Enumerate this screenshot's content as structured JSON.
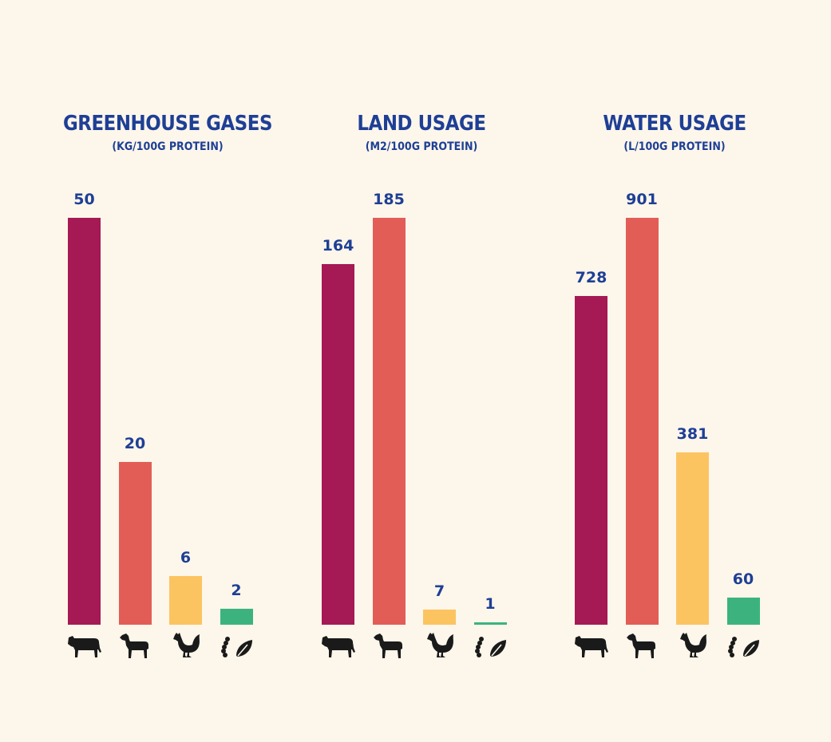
{
  "colors": {
    "background": "#fdf6ea",
    "text": "#1e3f96",
    "icon": "#1a1a1a"
  },
  "chart_data": [
    {
      "type": "bar",
      "title": "GREENHOUSE GASES",
      "subtitle": "(KG/100G PROTEIN)",
      "categories": [
        "cow-icon",
        "lamb-icon",
        "chicken-icon",
        "insect-plant-icon"
      ],
      "values": [
        50,
        20,
        6,
        2
      ],
      "value_labels": [
        "50",
        "20",
        "6",
        "2"
      ],
      "colors": [
        "#a51955",
        "#e35d57",
        "#fcc461",
        "#3cb37f"
      ],
      "grid": false,
      "legend": "none"
    },
    {
      "type": "bar",
      "title": "LAND USAGE",
      "subtitle": "(M2/100G PROTEIN)",
      "categories": [
        "cow-icon",
        "lamb-icon",
        "chicken-icon",
        "insect-plant-icon"
      ],
      "values": [
        164,
        185,
        7,
        1
      ],
      "value_labels": [
        "164",
        "185",
        "7",
        "1"
      ],
      "colors": [
        "#a51955",
        "#e35d57",
        "#fcc461",
        "#3cb37f"
      ],
      "grid": false,
      "legend": "none"
    },
    {
      "type": "bar",
      "title": "WATER USAGE",
      "subtitle": "(L/100G PROTEIN)",
      "categories": [
        "cow-icon",
        "lamb-icon",
        "chicken-icon",
        "insect-plant-icon"
      ],
      "values": [
        728,
        901,
        381,
        60
      ],
      "value_labels": [
        "728",
        "901",
        "381",
        "60"
      ],
      "colors": [
        "#a51955",
        "#e35d57",
        "#fcc461",
        "#3cb37f"
      ],
      "grid": false,
      "legend": "none"
    }
  ]
}
